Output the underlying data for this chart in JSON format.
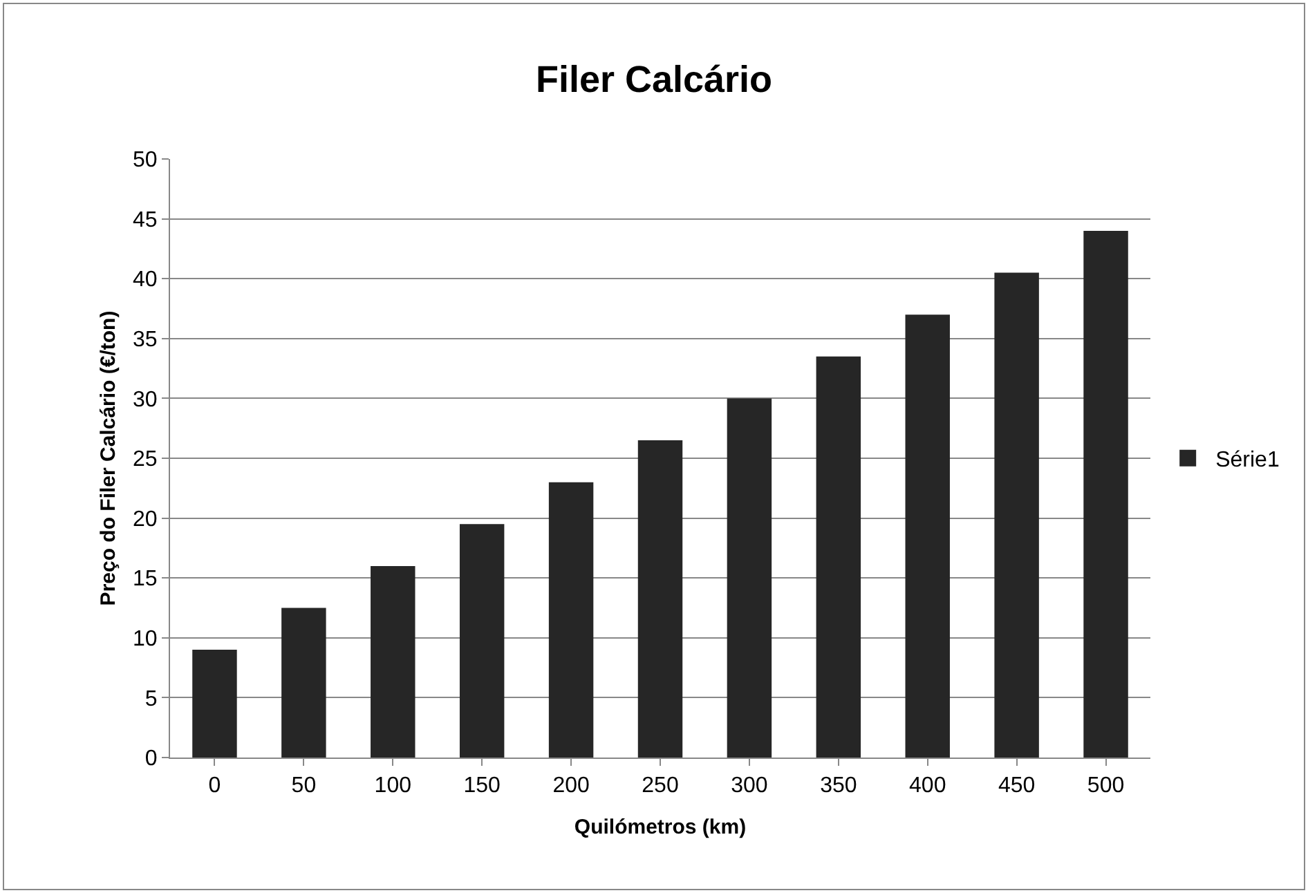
{
  "chart_data": {
    "type": "bar",
    "title": "Filer Calcário",
    "xlabel": "Quilómetros (km)",
    "ylabel": "Preço do Filer Calcário (€/ton)",
    "categories": [
      "0",
      "50",
      "100",
      "150",
      "200",
      "250",
      "300",
      "350",
      "400",
      "450",
      "500"
    ],
    "series": [
      {
        "name": "Série1",
        "color": "#262626",
        "values": [
          9,
          12.5,
          16,
          19.5,
          23,
          26.5,
          30,
          33.5,
          37,
          40.5,
          44
        ]
      }
    ],
    "ylim": [
      0,
      50
    ],
    "yticks": [
      0,
      5,
      10,
      15,
      20,
      25,
      30,
      35,
      40,
      45,
      50
    ],
    "grid": "y",
    "legend": "right"
  }
}
